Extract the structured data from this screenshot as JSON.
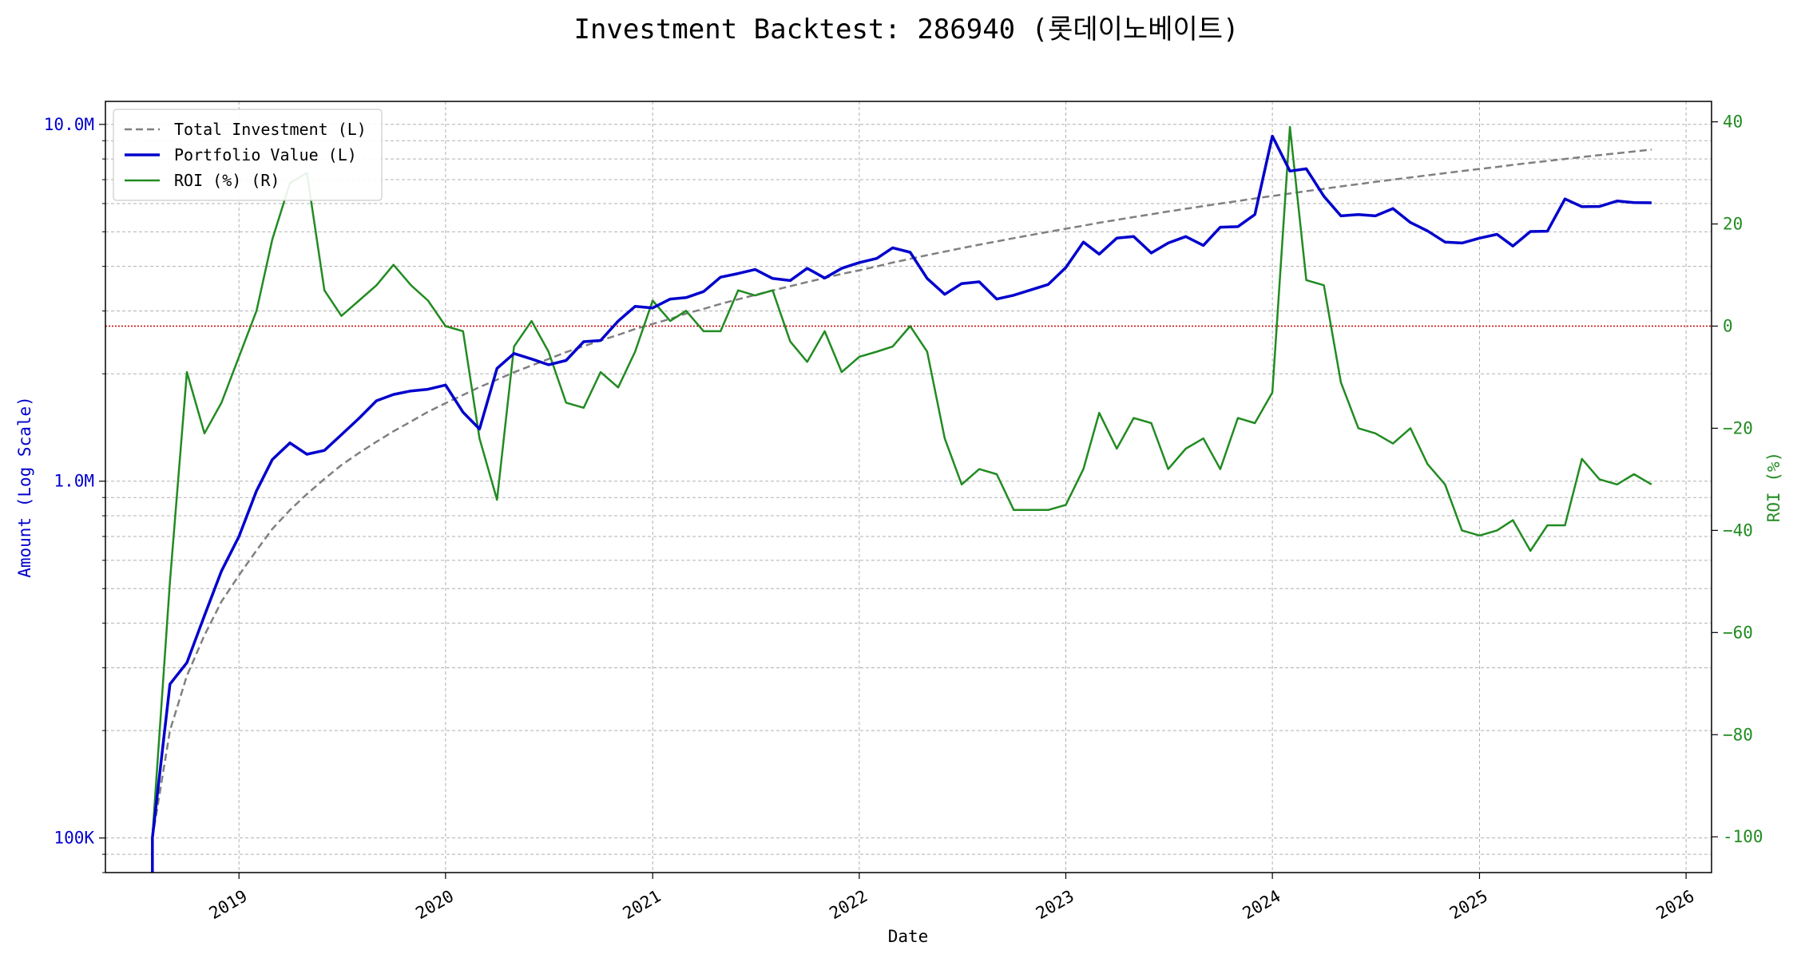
{
  "chart_data": {
    "type": "line",
    "title": "Investment Backtest: 286940 (롯데이노베이트)",
    "xlabel": "Date",
    "ylabel_left": "Amount (Log Scale)",
    "ylabel_right": "ROI (%)",
    "left_scale": "log",
    "xlim": [
      "2018-05-10",
      "2026-02-15"
    ],
    "ylim_left": [
      80000,
      11600000
    ],
    "ylim_right": [
      -107,
      44
    ],
    "grid": true,
    "legend_position": "top-left",
    "x_ticks": [
      {
        "label": "2019",
        "date": "2019-01-01"
      },
      {
        "label": "2020",
        "date": "2020-01-01"
      },
      {
        "label": "2021",
        "date": "2021-01-01"
      },
      {
        "label": "2022",
        "date": "2022-01-01"
      },
      {
        "label": "2023",
        "date": "2023-01-01"
      },
      {
        "label": "2024",
        "date": "2024-01-01"
      },
      {
        "label": "2025",
        "date": "2025-01-01"
      },
      {
        "label": "2026",
        "date": "2026-01-01"
      }
    ],
    "y_ticks_left": [
      {
        "label": "100K",
        "value": 100000
      },
      {
        "label": "1.0M",
        "value": 1000000
      },
      {
        "label": "10.0M",
        "value": 10000000
      }
    ],
    "y_ticks_right": [
      {
        "label": "-100",
        "value": -100
      },
      {
        "label": "−80",
        "value": -80
      },
      {
        "label": "−60",
        "value": -60
      },
      {
        "label": "−40",
        "value": -40
      },
      {
        "label": "−20",
        "value": -20
      },
      {
        "label": "0",
        "value": 0
      },
      {
        "label": "20",
        "value": 20
      },
      {
        "label": "40",
        "value": 40
      }
    ],
    "reference_line": {
      "axis": "right",
      "value": 0,
      "color": "#cc0000"
    },
    "dates": [
      "2018-08-01",
      "2018-09-01",
      "2018-10-01",
      "2018-11-01",
      "2018-12-01",
      "2019-01-01",
      "2019-02-01",
      "2019-03-01",
      "2019-04-01",
      "2019-05-01",
      "2019-06-01",
      "2019-07-01",
      "2019-08-01",
      "2019-09-01",
      "2019-10-01",
      "2019-11-01",
      "2019-12-01",
      "2020-01-01",
      "2020-02-01",
      "2020-03-01",
      "2020-04-01",
      "2020-05-01",
      "2020-06-01",
      "2020-07-01",
      "2020-08-01",
      "2020-09-01",
      "2020-10-01",
      "2020-11-01",
      "2020-12-01",
      "2021-01-01",
      "2021-02-01",
      "2021-03-01",
      "2021-04-01",
      "2021-05-01",
      "2021-06-01",
      "2021-07-01",
      "2021-08-01",
      "2021-09-01",
      "2021-10-01",
      "2021-11-01",
      "2021-12-01",
      "2022-01-01",
      "2022-02-01",
      "2022-03-01",
      "2022-04-01",
      "2022-05-01",
      "2022-06-01",
      "2022-07-01",
      "2022-08-01",
      "2022-09-01",
      "2022-10-01",
      "2022-11-01",
      "2022-12-01",
      "2023-01-01",
      "2023-02-01",
      "2023-03-01",
      "2023-04-01",
      "2023-05-01",
      "2023-06-01",
      "2023-07-01",
      "2023-08-01",
      "2023-09-01",
      "2023-10-01",
      "2023-11-01",
      "2023-12-01",
      "2024-01-01",
      "2024-02-01",
      "2024-03-01",
      "2024-04-01",
      "2024-05-01",
      "2024-06-01",
      "2024-07-01",
      "2024-08-01",
      "2024-09-01",
      "2024-10-01",
      "2024-11-01",
      "2024-12-01",
      "2025-01-01",
      "2025-02-01",
      "2025-03-01",
      "2025-04-01",
      "2025-05-01",
      "2025-06-01",
      "2025-07-01",
      "2025-08-01",
      "2025-09-01",
      "2025-10-01",
      "2025-11-01"
    ],
    "series": [
      {
        "name": "Total Investment (L)",
        "axis": "left",
        "color": "#808080",
        "style": "dashed",
        "values": [
          100000,
          200000,
          285000,
          370000,
          460000,
          545000,
          640000,
          735000,
          830000,
          920000,
          1015000,
          1110000,
          1200000,
          1290000,
          1380000,
          1470000,
          1565000,
          1655000,
          1745000,
          1835000,
          1925000,
          2020000,
          2110000,
          2200000,
          2300000,
          2390000,
          2480000,
          2570000,
          2670000,
          2760000,
          2850000,
          2950000,
          3040000,
          3140000,
          3235000,
          3325000,
          3425000,
          3520000,
          3615000,
          3710000,
          3810000,
          3900000,
          4000000,
          4100000,
          4200000,
          4300000,
          4400000,
          4500000,
          4600000,
          4700000,
          4800000,
          4900000,
          5000000,
          5100000,
          5200000,
          5300000,
          5400000,
          5500000,
          5600000,
          5700000,
          5800000,
          5900000,
          6000000,
          6100000,
          6200000,
          6300000,
          6400000,
          6500000,
          6600000,
          6700000,
          6800000,
          6900000,
          7000000,
          7100000,
          7200000,
          7300000,
          7400000,
          7500000,
          7600000,
          7700000,
          7800000,
          7900000,
          8000000,
          8100000,
          8200000,
          8300000,
          8400000,
          8500000
        ]
      },
      {
        "name": "Portfolio Value (L)",
        "axis": "left",
        "color": "#0000cc",
        "style": "solid",
        "values": [
          100000,
          270000,
          310000,
          420000,
          560000,
          700000,
          940000,
          1150000,
          1280000,
          1190000,
          1220000,
          1350000,
          1500000,
          1680000,
          1750000,
          1790000,
          1810000,
          1860000,
          1560000,
          1400000,
          2070000,
          2280000,
          2200000,
          2120000,
          2180000,
          2460000,
          2480000,
          2810000,
          3090000,
          3060000,
          3240000,
          3270000,
          3400000,
          3730000,
          3820000,
          3920000,
          3700000,
          3650000,
          3950000,
          3710000,
          3950000,
          4100000,
          4210000,
          4510000,
          4380000,
          3700000,
          3340000,
          3580000,
          3620000,
          3240000,
          3320000,
          3440000,
          3560000,
          3970000,
          4680000,
          4330000,
          4800000,
          4850000,
          4360000,
          4650000,
          4850000,
          4580000,
          5150000,
          5170000,
          5590000,
          9270000,
          7400000,
          7510000,
          6290000,
          5540000,
          5590000,
          5540000,
          5810000,
          5310000,
          5030000,
          4680000,
          4650000,
          4800000,
          4920000,
          4560000,
          5010000,
          5020000,
          6180000,
          5880000,
          5890000,
          6100000,
          6040000,
          6030000
        ]
      },
      {
        "name": "ROI (%) (R)",
        "axis": "right",
        "color": "#228b22",
        "style": "solid",
        "values": [
          -100,
          -50,
          -9,
          -21,
          -15,
          -6,
          3,
          17,
          28,
          30,
          7,
          2,
          5,
          8,
          12,
          8,
          5,
          0,
          -1,
          -22,
          -34,
          -4,
          1,
          -5,
          -15,
          -16,
          -9,
          -12,
          -5,
          5,
          1,
          3,
          -1,
          -1,
          7,
          6,
          7,
          -3,
          -7,
          -1,
          -9,
          -6,
          -5,
          -4,
          0,
          -5,
          -22,
          -31,
          -28,
          -29,
          -36,
          -36,
          -36,
          -35,
          -28,
          -17,
          -24,
          -18,
          -19,
          -28,
          -24,
          -22,
          -28,
          -18,
          -19,
          -13,
          39,
          9,
          8,
          -11,
          -20,
          -21,
          -23,
          -20,
          -27,
          -31,
          -40,
          -41,
          -40,
          -38,
          -44,
          -39,
          -39,
          -26,
          -30,
          -31,
          -29,
          -31
        ]
      }
    ]
  }
}
